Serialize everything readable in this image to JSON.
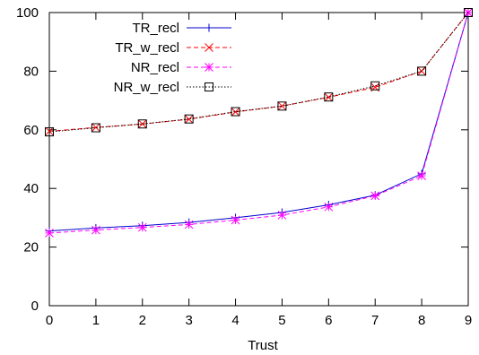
{
  "chart_data": {
    "type": "line",
    "title": "",
    "xlabel": "Trust",
    "ylabel": "",
    "xlim": [
      0,
      9
    ],
    "ylim": [
      0,
      100
    ],
    "x_ticks": [
      0,
      1,
      2,
      3,
      4,
      5,
      6,
      7,
      8,
      9
    ],
    "y_ticks": [
      0,
      20,
      40,
      60,
      80,
      100
    ],
    "grid": false,
    "legend_position": "top-left",
    "x": [
      0,
      1,
      2,
      3,
      4,
      5,
      6,
      7,
      8,
      9
    ],
    "series": [
      {
        "name": "TR_recl",
        "color": "#0000cc",
        "dash": "solid",
        "marker": "plus",
        "values": [
          25.5,
          26.5,
          27.3,
          28.4,
          30.0,
          31.8,
          34.4,
          37.7,
          45.0,
          100
        ]
      },
      {
        "name": "TR_w_recl",
        "color": "#ff0000",
        "dash": "dashed",
        "marker": "cross",
        "values": [
          59.5,
          60.8,
          62.0,
          63.6,
          66.1,
          68.1,
          71.1,
          74.5,
          80.0,
          100
        ]
      },
      {
        "name": "NR_recl",
        "color": "#ff00ff",
        "dash": "dashed",
        "marker": "star",
        "values": [
          24.8,
          25.8,
          26.7,
          27.7,
          29.2,
          30.9,
          33.7,
          37.5,
          44.3,
          100
        ]
      },
      {
        "name": "NR_w_recl",
        "color": "#000000",
        "dash": "dotted",
        "marker": "square",
        "values": [
          59.3,
          60.7,
          62.0,
          63.7,
          66.2,
          68.1,
          71.2,
          75.0,
          80.0,
          100
        ]
      }
    ]
  }
}
